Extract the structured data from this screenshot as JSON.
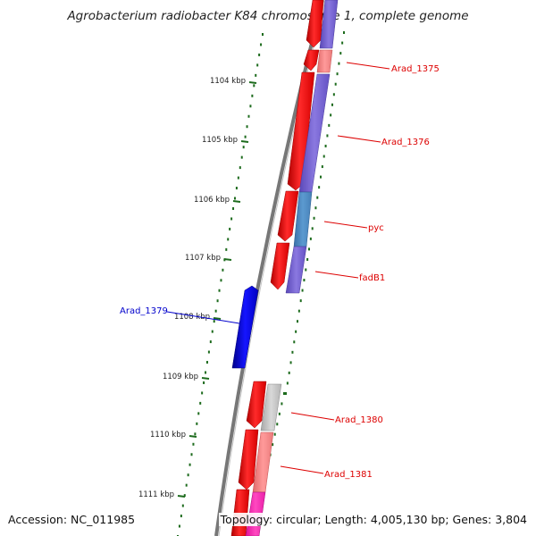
{
  "title": "Agrobacterium radiobacter K84 chromosome 1, complete genome",
  "accession_text": "Accession: NC_011985",
  "topology_text": "Topology: circular; Length: 4,005,130 bp; Genes: 3,804",
  "colors": {
    "backbone": "#7a7a7a",
    "tick": "#1d6b1d",
    "forward_gene": "#ff0000",
    "reverse_gene": "#0000ee",
    "label_line_red": "#dd0000",
    "label_line_blue": "#0000cc"
  },
  "position_markers": [
    {
      "label": "1104 kbp"
    },
    {
      "label": "1105 kbp"
    },
    {
      "label": "1106 kbp"
    },
    {
      "label": "1107 kbp"
    },
    {
      "label": "1108 kbp"
    },
    {
      "label": "1109 kbp"
    },
    {
      "label": "1110 kbp"
    },
    {
      "label": "1111 kbp"
    }
  ],
  "gene_labels": [
    {
      "text": "Arad_1375",
      "color": "#dd0000"
    },
    {
      "text": "Arad_1376",
      "color": "#dd0000"
    },
    {
      "text": "pyc",
      "color": "#dd0000"
    },
    {
      "text": "fadB1",
      "color": "#dd0000"
    },
    {
      "text": "Arad_1379",
      "color": "#0000cc"
    },
    {
      "text": "Arad_1380",
      "color": "#dd0000"
    },
    {
      "text": "Arad_1381",
      "color": "#dd0000"
    }
  ]
}
